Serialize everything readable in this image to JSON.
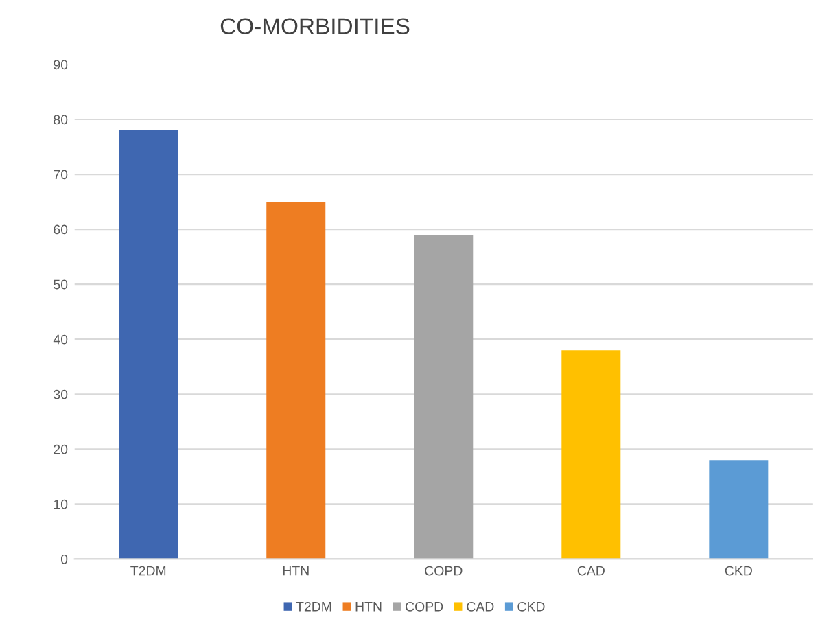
{
  "chart_data": {
    "type": "bar",
    "title": "CO-MORBIDITIES",
    "categories": [
      "T2DM",
      "HTN",
      "COPD",
      "CAD",
      "CKD"
    ],
    "series": [
      {
        "name": "T2DM",
        "color": "#3f67b1",
        "values": [
          78,
          null,
          null,
          null,
          null
        ]
      },
      {
        "name": "HTN",
        "color": "#ee7d22",
        "values": [
          null,
          65,
          null,
          null,
          null
        ]
      },
      {
        "name": "COPD",
        "color": "#a5a5a5",
        "values": [
          null,
          null,
          59,
          null,
          null
        ]
      },
      {
        "name": "CAD",
        "color": "#ffc000",
        "values": [
          null,
          null,
          null,
          38,
          null
        ]
      },
      {
        "name": "CKD",
        "color": "#5b9bd5",
        "values": [
          null,
          null,
          null,
          null,
          18
        ]
      }
    ],
    "ylim": [
      0,
      90
    ],
    "yticks": [
      0,
      10,
      20,
      30,
      40,
      50,
      60,
      70,
      80,
      90
    ],
    "grid": "y",
    "legend": "bottom"
  }
}
